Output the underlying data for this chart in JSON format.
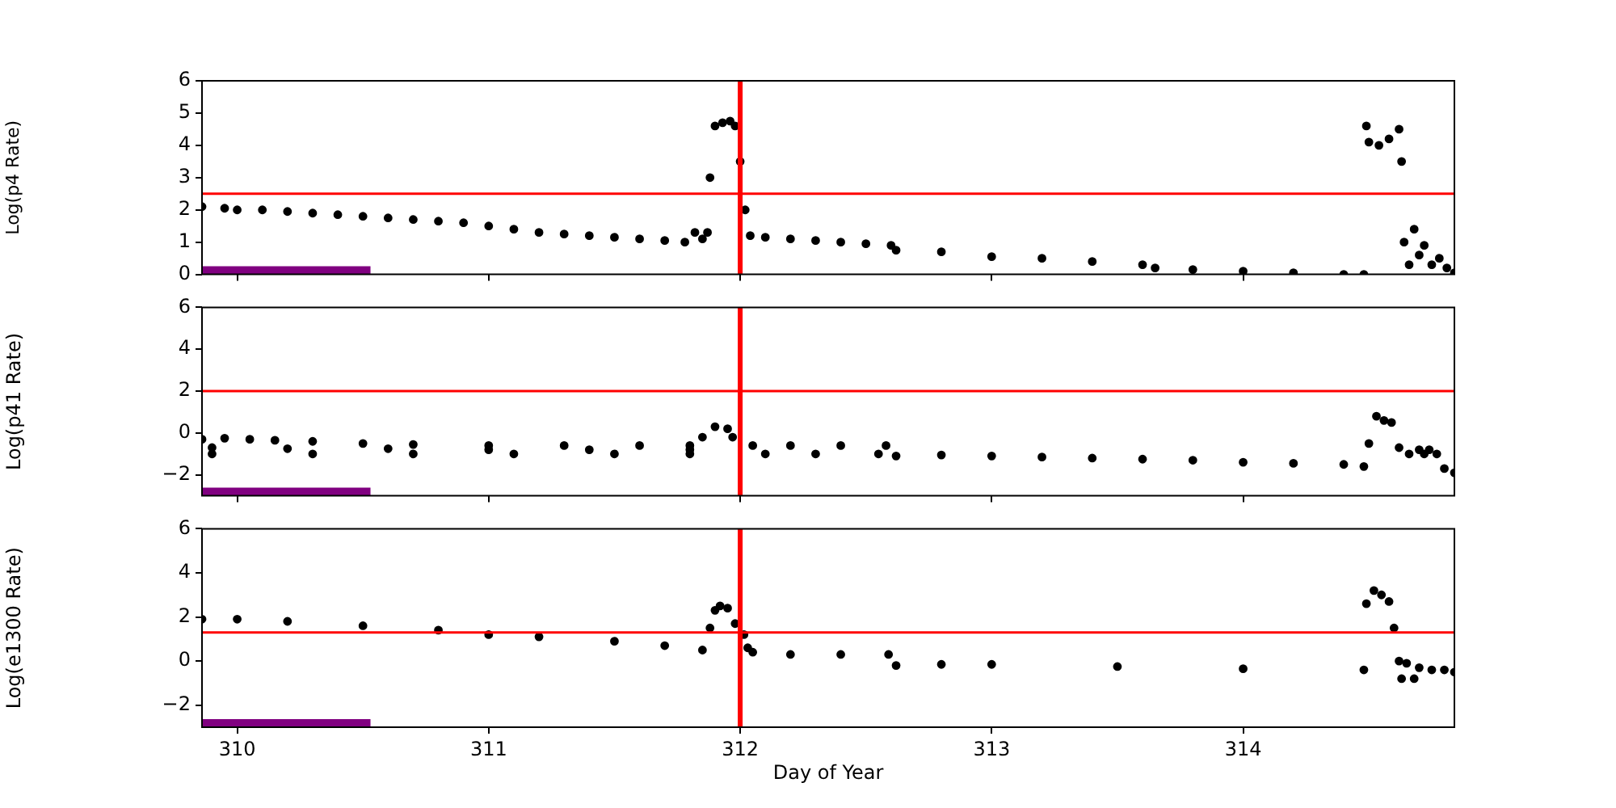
{
  "chart_data": [
    {
      "type": "scatter",
      "ylabel": "Log(p4 Rate)",
      "xlim": [
        309.86,
        314.84
      ],
      "xticks": [
        310,
        311,
        312,
        313,
        314
      ],
      "ylim": [
        0,
        6
      ],
      "yticks": [
        0,
        1,
        2,
        3,
        4,
        5,
        6
      ],
      "tick_labels": "y",
      "marker": "circle",
      "series": [
        {
          "color": "#000000",
          "x": [
            309.86,
            309.95,
            310.0,
            310.1,
            310.2,
            310.3,
            310.4,
            310.5,
            310.6,
            310.7,
            310.8,
            310.9,
            311.0,
            311.1,
            311.2,
            311.3,
            311.4,
            311.5,
            311.6,
            311.7,
            311.78,
            311.82,
            311.85,
            311.87,
            311.88,
            311.9,
            311.93,
            311.96,
            311.98,
            312.0,
            312.02,
            312.04,
            312.1,
            312.2,
            312.3,
            312.4,
            312.5,
            312.6,
            312.62,
            312.8,
            313.0,
            313.2,
            313.4,
            313.6,
            313.65,
            313.8,
            314.0,
            314.2,
            314.4,
            314.48,
            314.49,
            314.5,
            314.54,
            314.58,
            314.62,
            314.63,
            314.64,
            314.66,
            314.68,
            314.7,
            314.72,
            314.75,
            314.78,
            314.81,
            314.84
          ],
          "values": [
            2.1,
            2.05,
            2.0,
            2.0,
            1.95,
            1.9,
            1.85,
            1.8,
            1.75,
            1.7,
            1.65,
            1.6,
            1.5,
            1.4,
            1.3,
            1.25,
            1.2,
            1.15,
            1.1,
            1.05,
            1.0,
            1.3,
            1.1,
            1.3,
            3.0,
            4.6,
            4.7,
            4.75,
            4.6,
            3.5,
            2.0,
            1.2,
            1.15,
            1.1,
            1.05,
            1.0,
            0.95,
            0.9,
            0.75,
            0.7,
            0.55,
            0.5,
            0.4,
            0.3,
            0.2,
            0.15,
            0.1,
            0.05,
            0.0,
            0.0,
            4.6,
            4.1,
            4.0,
            4.2,
            4.5,
            3.5,
            1.0,
            0.3,
            1.4,
            0.6,
            0.9,
            0.3,
            0.5,
            0.2,
            0.05
          ]
        }
      ],
      "ref_lines": [
        {
          "axis": "y",
          "value": 2.5,
          "color": "#ff0000"
        },
        {
          "axis": "x",
          "value": 312.0,
          "color": "#ff0000"
        }
      ],
      "bands": [
        {
          "axis": "x",
          "from": 309.86,
          "to": 310.53,
          "color": "#800080"
        }
      ]
    },
    {
      "type": "scatter",
      "ylabel": "Log(p41 Rate)",
      "xlim": [
        309.86,
        314.84
      ],
      "xticks": [
        310,
        311,
        312,
        313,
        314
      ],
      "ylim": [
        -3,
        6
      ],
      "yticks": [
        -2,
        0,
        2,
        4,
        6
      ],
      "tick_labels": "y",
      "marker": "circle",
      "series": [
        {
          "color": "#000000",
          "x": [
            309.86,
            309.95,
            310.05,
            310.15,
            310.3,
            310.5,
            310.7,
            311.0,
            311.3,
            311.6,
            311.8,
            309.9,
            310.2,
            310.6,
            311.0,
            311.4,
            311.8,
            309.9,
            310.3,
            310.7,
            311.1,
            311.5,
            311.8,
            311.85,
            311.9,
            311.95,
            311.97,
            312.05,
            312.2,
            312.4,
            312.58,
            312.1,
            312.3,
            312.55,
            312.62,
            312.8,
            313.0,
            313.2,
            313.4,
            313.6,
            313.8,
            314.0,
            314.2,
            314.4,
            314.48,
            314.5,
            314.53,
            314.56,
            314.59,
            314.62,
            314.7,
            314.74,
            314.66,
            314.72,
            314.77,
            314.8,
            314.84
          ],
          "values": [
            -0.3,
            -0.25,
            -0.3,
            -0.35,
            -0.4,
            -0.5,
            -0.55,
            -0.6,
            -0.6,
            -0.6,
            -0.6,
            -0.7,
            -0.75,
            -0.75,
            -0.8,
            -0.8,
            -0.8,
            -1.0,
            -1.0,
            -1.0,
            -1.0,
            -1.0,
            -1.0,
            -0.2,
            0.3,
            0.2,
            -0.2,
            -0.6,
            -0.6,
            -0.6,
            -0.6,
            -1.0,
            -1.0,
            -1.0,
            -1.1,
            -1.05,
            -1.1,
            -1.15,
            -1.2,
            -1.25,
            -1.3,
            -1.4,
            -1.45,
            -1.5,
            -1.6,
            -0.5,
            0.8,
            0.6,
            0.5,
            -0.7,
            -0.8,
            -0.8,
            -1.0,
            -1.0,
            -1.0,
            -1.7,
            -1.9
          ]
        }
      ],
      "ref_lines": [
        {
          "axis": "y",
          "value": 2,
          "color": "#ff0000"
        },
        {
          "axis": "x",
          "value": 312.0,
          "color": "#ff0000"
        }
      ],
      "bands": [
        {
          "axis": "x",
          "from": 309.86,
          "to": 310.53,
          "color": "#800080"
        }
      ]
    },
    {
      "type": "scatter",
      "ylabel": "Log(e1300 Rate)",
      "xlabel": "Day of Year",
      "xlim": [
        309.86,
        314.84
      ],
      "xticks": [
        310,
        311,
        312,
        313,
        314
      ],
      "ylim": [
        -3,
        6
      ],
      "yticks": [
        -2,
        0,
        2,
        4,
        6
      ],
      "marker": "circle",
      "series": [
        {
          "color": "#000000",
          "x": [
            309.86,
            310.0,
            310.2,
            310.5,
            310.8,
            311.0,
            311.2,
            311.5,
            311.7,
            311.85,
            311.88,
            311.9,
            311.92,
            311.95,
            311.98,
            312.015,
            312.03,
            312.05,
            312.2,
            312.4,
            312.59,
            312.62,
            312.8,
            313.0,
            313.5,
            314.0,
            314.48,
            314.49,
            314.52,
            314.55,
            314.58,
            314.6,
            314.62,
            314.65,
            314.7,
            314.75,
            314.8,
            314.84,
            314.63,
            314.68
          ],
          "values": [
            1.9,
            1.9,
            1.8,
            1.6,
            1.4,
            1.2,
            1.1,
            0.9,
            0.7,
            0.5,
            1.5,
            2.3,
            2.5,
            2.4,
            1.7,
            1.2,
            0.6,
            0.4,
            0.3,
            0.3,
            0.3,
            -0.2,
            -0.15,
            -0.15,
            -0.25,
            -0.35,
            -0.4,
            2.6,
            3.2,
            3.0,
            2.7,
            1.5,
            0.0,
            -0.1,
            -0.3,
            -0.4,
            -0.4,
            -0.5,
            -0.8,
            -0.8
          ]
        }
      ],
      "ref_lines": [
        {
          "axis": "y",
          "value": 1.3,
          "color": "#ff0000"
        },
        {
          "axis": "x",
          "value": 312.0,
          "color": "#ff0000"
        }
      ],
      "bands": [
        {
          "axis": "x",
          "from": 309.86,
          "to": 310.53,
          "color": "#800080"
        }
      ]
    }
  ]
}
